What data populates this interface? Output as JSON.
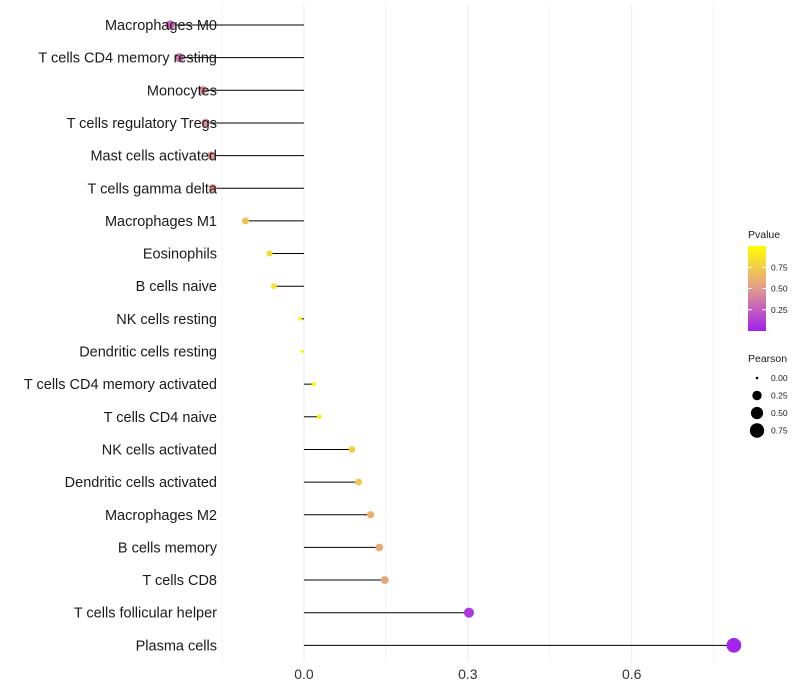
{
  "chart_data": {
    "type": "lollipop",
    "title": "",
    "xlabel": "",
    "ylabel": "",
    "xlim": [
      -0.15,
      0.8
    ],
    "x_ticks": [
      0.0,
      0.3,
      0.6
    ],
    "x_tick_labels": [
      "0.0",
      "0.3",
      "0.6"
    ],
    "grid": true,
    "categories": [
      "Macrophages M0",
      "T cells CD4 memory resting",
      "Monocytes",
      "T cells regulatory  Tregs",
      "Mast cells activated",
      "T cells gamma delta",
      "Macrophages M1",
      "Eosinophils",
      "B cells naive",
      "NK cells resting",
      "Dendritic cells resting",
      "T cells CD4 memory activated",
      "T cells CD4 naive",
      "NK cells activated",
      "Dendritic cells activated",
      "Macrophages M2",
      "B cells memory",
      "T cells CD8",
      "T cells follicular helper",
      "Plasma cells"
    ],
    "correlation": [
      -0.245,
      -0.228,
      -0.185,
      -0.18,
      -0.17,
      -0.167,
      -0.107,
      -0.063,
      -0.055,
      -0.007,
      -0.003,
      0.018,
      0.028,
      0.088,
      0.1,
      0.122,
      0.138,
      0.148,
      0.302,
      0.787
    ],
    "pvalue": [
      0.3,
      0.33,
      0.45,
      0.45,
      0.47,
      0.5,
      0.7,
      0.82,
      0.85,
      0.97,
      0.98,
      0.95,
      0.92,
      0.75,
      0.72,
      0.62,
      0.58,
      0.55,
      0.1,
      0.02
    ],
    "legend_pvalue": {
      "title": "Pvalue",
      "ticks": [
        "0.75",
        "0.50",
        "0.25"
      ],
      "tick_values": [
        0.75,
        0.5,
        0.25
      ],
      "range": [
        0.0,
        1.0
      ],
      "low_color": "#a020f0",
      "mid_color": "#e39a8e",
      "high_color": "#ffff00"
    },
    "legend_pearson": {
      "title": "Pearson",
      "labels": [
        "0.00",
        "0.25",
        "0.50",
        "0.75"
      ],
      "values": [
        0.0,
        0.25,
        0.5,
        0.75
      ]
    },
    "colors": {
      "segment": "#000000",
      "grid": "#ebebeb",
      "background": "#ffffff"
    }
  }
}
